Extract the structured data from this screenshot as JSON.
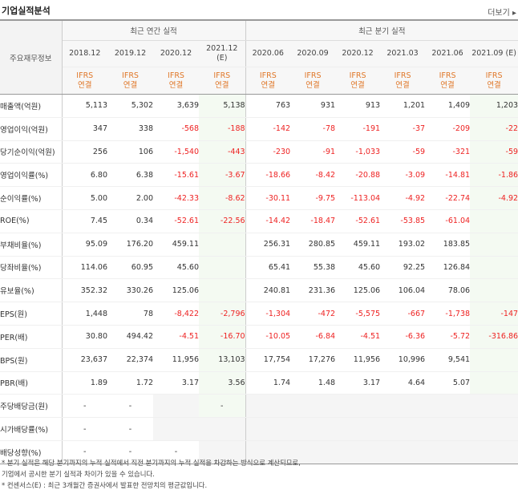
{
  "header": {
    "title": "기업실적분석",
    "more": "더보기 ▸"
  },
  "table": {
    "label_header": "주요재무정보",
    "group_annual": "최근 연간 실적",
    "group_quarter": "최근 분기 실적",
    "periods": [
      "2018.12",
      "2019.12",
      "2020.12",
      "2021.12\n(E)",
      "2020.06",
      "2020.09",
      "2020.12",
      "2021.03",
      "2021.06",
      "2021.09 (E)"
    ],
    "ifrs": [
      "IFRS\n연결",
      "IFRS\n연결",
      "IFRS\n연결",
      "IFRS\n연결",
      "IFRS\n연결",
      "IFRS\n연결",
      "IFRS\n연결",
      "IFRS\n연결",
      "IFRS\n연결",
      "IFRS\n연결"
    ],
    "rows": [
      {
        "label": "매출액(억원)",
        "values": [
          "5,113",
          "5,302",
          "3,639",
          "5,138",
          "763",
          "931",
          "913",
          "1,201",
          "1,409",
          "1,203"
        ]
      },
      {
        "label": "영업이익(억원)",
        "values": [
          "347",
          "338",
          "-568",
          "-188",
          "-142",
          "-78",
          "-191",
          "-37",
          "-209",
          "-22"
        ]
      },
      {
        "label": "당기순이익(억원)",
        "values": [
          "256",
          "106",
          "-1,540",
          "-443",
          "-230",
          "-91",
          "-1,033",
          "-59",
          "-321",
          "-59"
        ]
      },
      {
        "label": "영업이익률(%)",
        "values": [
          "6.80",
          "6.38",
          "-15.61",
          "-3.67",
          "-18.66",
          "-8.42",
          "-20.88",
          "-3.09",
          "-14.81",
          "-1.86"
        ]
      },
      {
        "label": "순이익률(%)",
        "values": [
          "5.00",
          "2.00",
          "-42.33",
          "-8.62",
          "-30.11",
          "-9.75",
          "-113.04",
          "-4.92",
          "-22.74",
          "-4.92"
        ]
      },
      {
        "label": "ROE(%)",
        "values": [
          "7.45",
          "0.34",
          "-52.61",
          "-22.56",
          "-14.42",
          "-18.47",
          "-52.61",
          "-53.85",
          "-61.04",
          ""
        ]
      },
      {
        "label": "부채비율(%)",
        "values": [
          "95.09",
          "176.20",
          "459.11",
          "",
          "256.31",
          "280.85",
          "459.11",
          "193.02",
          "183.85",
          ""
        ]
      },
      {
        "label": "당좌비율(%)",
        "values": [
          "114.06",
          "60.95",
          "45.60",
          "",
          "65.41",
          "55.38",
          "45.60",
          "92.25",
          "126.84",
          ""
        ]
      },
      {
        "label": "유보율(%)",
        "values": [
          "352.32",
          "330.26",
          "125.06",
          "",
          "240.81",
          "231.36",
          "125.06",
          "106.04",
          "78.06",
          ""
        ]
      },
      {
        "label": "EPS(원)",
        "values": [
          "1,448",
          "78",
          "-8,422",
          "-2,796",
          "-1,304",
          "-472",
          "-5,575",
          "-667",
          "-1,738",
          "-147"
        ]
      },
      {
        "label": "PER(배)",
        "values": [
          "30.80",
          "494.42",
          "-4.51",
          "-16.70",
          "-10.05",
          "-6.84",
          "-4.51",
          "-6.36",
          "-5.72",
          "-316.86"
        ]
      },
      {
        "label": "BPS(원)",
        "values": [
          "23,637",
          "22,374",
          "11,956",
          "13,103",
          "17,754",
          "17,276",
          "11,956",
          "10,996",
          "9,541",
          ""
        ]
      },
      {
        "label": "PBR(배)",
        "values": [
          "1.89",
          "1.72",
          "3.17",
          "3.56",
          "1.74",
          "1.48",
          "3.17",
          "4.64",
          "5.07",
          ""
        ]
      },
      {
        "label": "주당배당금(원)",
        "values": [
          "-",
          "-",
          "",
          "-",
          "",
          "",
          "",
          "",
          "",
          ""
        ]
      },
      {
        "label": "시가배당률(%)",
        "values": [
          "-",
          "-",
          "",
          "",
          "",
          "",
          "",
          "",
          "",
          ""
        ]
      },
      {
        "label": "배당성향(%)",
        "values": [
          "-",
          "-",
          "-",
          "",
          "",
          "",
          "",
          "",
          "",
          ""
        ]
      }
    ]
  },
  "notes": [
    "* 분기 실적은 해당 분기까지의 누적 실적에서 직전 분기까지의 누적 실적을 차감하는 방식으로 계산되므로,",
    "  기업에서 공시한 분기 실적과 차이가 있을 수 있습니다.",
    "* 컨센서스(E) : 최근 3개월간 증권사에서 발표한 전망치의 평균값입니다."
  ]
}
